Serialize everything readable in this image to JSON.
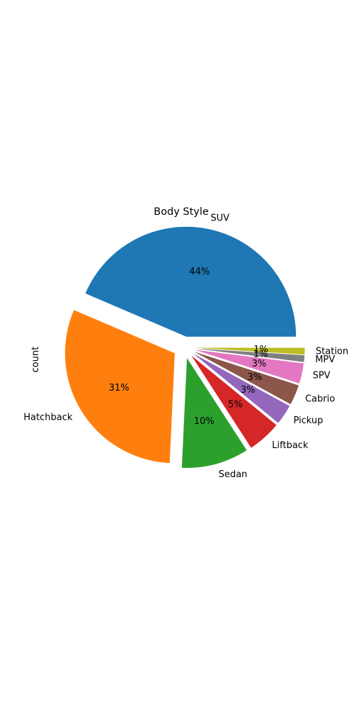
{
  "chart_data": {
    "type": "pie",
    "title": "Body Style",
    "ylabel": "count",
    "categories": [
      "SUV",
      "Hatchback",
      "Sedan",
      "Liftback",
      "Pickup",
      "Cabrio",
      "SPV",
      "MPV",
      "Station"
    ],
    "values": [
      44,
      31,
      10,
      5,
      3,
      3,
      3,
      1,
      1
    ],
    "percent_labels": [
      "44%",
      "31%",
      "10%",
      "5%",
      "3%",
      "3%",
      "3%",
      "1%",
      "1%"
    ],
    "colors": [
      "#1f77b4",
      "#ff7f0e",
      "#2ca02c",
      "#d62728",
      "#9467bd",
      "#8c564b",
      "#e377c2",
      "#7f7f7f",
      "#bcbd22"
    ],
    "explode": [
      0.1,
      0.1,
      0.1,
      0.1,
      0.1,
      0.1,
      0.1,
      0.1,
      0.1
    ],
    "start_angle_deg": 0,
    "direction": "counterclockwise"
  }
}
